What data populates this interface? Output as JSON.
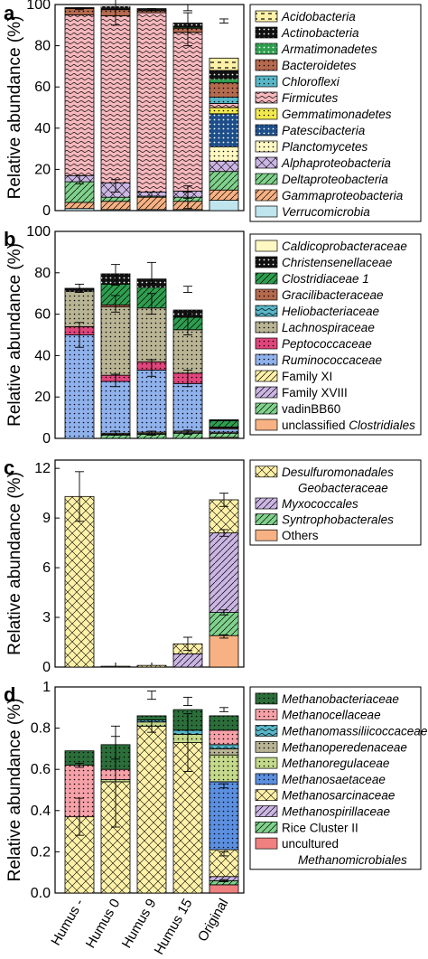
{
  "chart_data": [
    {
      "panel": "a",
      "type": "bar",
      "stacked": true,
      "ylabel": "Relative abundance (%)",
      "ylim": [
        0,
        100
      ],
      "yticks": [
        "0",
        "20",
        "40",
        "60",
        "80",
        "100"
      ],
      "categories": [
        "Humus -",
        "Humus 0",
        "Humus 9",
        "Humus 15",
        "Original"
      ],
      "series": [
        {
          "name": "Acidobacteria",
          "italic": true,
          "color": "#fff2a8",
          "pattern": "dash-black",
          "values": [
            0,
            0,
            0,
            0,
            6
          ]
        },
        {
          "name": "Actinobacteria",
          "italic": true,
          "color": "#111111",
          "pattern": "dots-white",
          "values": [
            0.5,
            1.5,
            1,
            2,
            4
          ]
        },
        {
          "name": "Armatimonadetes",
          "italic": true,
          "color": "#2e9e4f",
          "pattern": "dots-white",
          "values": [
            0,
            0,
            0,
            0.5,
            2
          ]
        },
        {
          "name": "Bacteroidetes",
          "italic": true,
          "color": "#b56a4e",
          "pattern": "dots-black",
          "values": [
            3,
            3,
            1,
            2,
            7
          ]
        },
        {
          "name": "Chloroflexi",
          "italic": true,
          "color": "#57b7c8",
          "pattern": "dots-black",
          "values": [
            0,
            0,
            0,
            0,
            3
          ]
        },
        {
          "name": "Firmicutes",
          "italic": true,
          "color": "#f6b8bd",
          "pattern": "wave-black",
          "values": [
            78,
            81,
            87,
            77,
            2
          ]
        },
        {
          "name": "Gemmatimonadetes",
          "italic": true,
          "color": "#f2e94e",
          "pattern": "dots-black",
          "values": [
            0,
            0,
            0,
            0,
            3
          ]
        },
        {
          "name": "Patescibacteria",
          "italic": true,
          "color": "#1d4e89",
          "pattern": "dots-white",
          "values": [
            0,
            0,
            0,
            0,
            16
          ]
        },
        {
          "name": "Planctomycetes",
          "italic": true,
          "color": "#fff8c2",
          "pattern": "dots-black",
          "values": [
            0,
            0,
            0,
            0,
            7
          ]
        },
        {
          "name": "Alphaproteobacteria",
          "italic": true,
          "color": "#cbb5e3",
          "pattern": "cross-black",
          "values": [
            3,
            7,
            2,
            3,
            5
          ]
        },
        {
          "name": "Deltaproteobacteria",
          "italic": true,
          "color": "#7fd18b",
          "pattern": "diag-black",
          "values": [
            10,
            2,
            0.5,
            2,
            9
          ]
        },
        {
          "name": "Gammaproteobacteria",
          "italic": true,
          "color": "#f7b183",
          "pattern": "diag-black",
          "values": [
            3,
            4,
            6,
            4,
            5
          ]
        },
        {
          "name": "Verrucomicrobia",
          "italic": true,
          "color": "#bfe5ee",
          "pattern": "none",
          "values": [
            1,
            0.5,
            0.5,
            0.5,
            5
          ]
        }
      ],
      "error_bars": [
        {
          "category": "Humus -",
          "series": "Firmicutes",
          "y": 98,
          "err": 0.5
        },
        {
          "category": "Humus 0",
          "series": "Firmicutes",
          "y": 98,
          "err": 8
        },
        {
          "category": "Humus 9",
          "series": "Firmicutes",
          "y": 97.5,
          "err": 0.5
        },
        {
          "category": "Humus 15",
          "series": "Firmicutes",
          "y": 88,
          "err": 8
        },
        {
          "category": "Humus 15",
          "series": "Firmicutes",
          "y": 98.5,
          "err": 1.5
        },
        {
          "category": "Humus -",
          "series": "Deltaproteobacteria",
          "y": 15,
          "err": 2
        },
        {
          "category": "Humus 0",
          "series": "Alphaproteobacteria",
          "y": 12,
          "err": 3
        },
        {
          "category": "Humus 9",
          "series": "Alphaproteobacteria",
          "y": 8,
          "err": 1
        },
        {
          "category": "Humus 15",
          "series": "Alphaproteobacteria",
          "y": 9,
          "err": 3
        },
        {
          "category": "Humus 15",
          "series": "Gammaproteobacteria",
          "y": 5,
          "err": 4
        },
        {
          "category": "Original",
          "series": "Acidobacteria",
          "y": 92,
          "err": 1
        }
      ]
    },
    {
      "panel": "b",
      "type": "bar",
      "stacked": true,
      "ylabel": "Relative abundance (%)",
      "ylim": [
        0,
        100
      ],
      "yticks": [
        "0",
        "20",
        "40",
        "60",
        "80",
        "100"
      ],
      "categories": [
        "Humus -",
        "Humus 0",
        "Humus 9",
        "Humus 15",
        "Original"
      ],
      "series": [
        {
          "name": "Caldicoprobacteraceae",
          "italic": true,
          "color": "#fff8c2",
          "pattern": "none",
          "values": [
            0,
            0,
            0,
            0,
            0
          ]
        },
        {
          "name": "Christensenellaceae",
          "italic": true,
          "color": "#111111",
          "pattern": "dots-white",
          "values": [
            1.5,
            5,
            4,
            3.5,
            0.5
          ]
        },
        {
          "name": "Clostridiaceae 1",
          "italic": true,
          "color": "#2e9e4f",
          "pattern": "diag-black",
          "values": [
            0,
            10,
            10,
            6,
            3
          ]
        },
        {
          "name": "Gracilibacteraceae",
          "italic": true,
          "color": "#b56a4e",
          "pattern": "dots-black",
          "values": [
            0,
            1,
            0,
            0,
            0.5
          ]
        },
        {
          "name": "Heliobacteriaceae",
          "italic": true,
          "color": "#57b7c8",
          "pattern": "wave-black",
          "values": [
            0,
            0,
            0,
            0,
            0
          ]
        },
        {
          "name": "Lachnospiraceae",
          "italic": true,
          "color": "#b8b494",
          "pattern": "dots-black",
          "values": [
            17,
            33,
            26,
            21,
            0.5
          ]
        },
        {
          "name": "Peptococcaceae",
          "italic": true,
          "color": "#e0457b",
          "pattern": "dots-black",
          "values": [
            4,
            3,
            4,
            5,
            0
          ]
        },
        {
          "name": "Ruminococcaceae",
          "italic": true,
          "color": "#8fb1ec",
          "pattern": "dots-black",
          "values": [
            50,
            25,
            30,
            23,
            1.5
          ]
        },
        {
          "name": "Family XI",
          "italic": false,
          "color": "#fff2a8",
          "pattern": "diag-black",
          "values": [
            0,
            0.5,
            0.5,
            0.5,
            0
          ]
        },
        {
          "name": "Family XVIII",
          "italic": false,
          "color": "#cbb5e3",
          "pattern": "diag-black",
          "values": [
            0,
            0.5,
            0.5,
            0.5,
            0.5
          ]
        },
        {
          "name": "vadinBB60",
          "italic": false,
          "color": "#7fd18b",
          "pattern": "diag-black",
          "values": [
            0,
            1.5,
            2,
            2.5,
            2
          ]
        },
        {
          "name": "unclassified Clostridiales",
          "italic_word": "Clostridiales",
          "prefix": "unclassified ",
          "color": "#f7b183",
          "pattern": "none",
          "values": [
            0,
            0,
            0,
            0,
            0.5
          ]
        }
      ],
      "error_bars": [
        {
          "category": "Humus -",
          "series": "Christensenellaceae",
          "y": 72.5,
          "err": 2
        },
        {
          "category": "Humus 0",
          "series": "Christensenellaceae",
          "y": 79,
          "err": 5
        },
        {
          "category": "Humus 9",
          "series": "Christensenellaceae",
          "y": 80,
          "err": 5
        },
        {
          "category": "Humus 15",
          "series": "Christensenellaceae",
          "y": 72,
          "err": 1.5
        },
        {
          "category": "Humus -",
          "series": "Ruminococcaceae",
          "y": 50,
          "err": 6
        },
        {
          "category": "Humus 0",
          "series": "Lachnospiraceae",
          "y": 65,
          "err": 4
        },
        {
          "category": "Humus 0",
          "series": "Ruminococcaceae",
          "y": 28,
          "err": 3
        },
        {
          "category": "Humus 9",
          "series": "Lachnospiraceae",
          "y": 65,
          "err": 5
        },
        {
          "category": "Humus 9",
          "series": "Ruminococcaceae",
          "y": 34,
          "err": 4
        },
        {
          "category": "Humus 15",
          "series": "Lachnospiraceae",
          "y": 55,
          "err": 5
        },
        {
          "category": "Humus 15",
          "series": "Ruminococcaceae",
          "y": 29,
          "err": 4
        },
        {
          "category": "Humus 0",
          "series": "vadinBB60",
          "y": 2.5,
          "err": 1
        },
        {
          "category": "Humus 9",
          "series": "vadinBB60",
          "y": 2.5,
          "err": 1
        },
        {
          "category": "Humus 15",
          "series": "vadinBB60",
          "y": 3,
          "err": 1
        }
      ]
    },
    {
      "panel": "c",
      "type": "bar",
      "stacked": true,
      "ylabel": "Relative abundance (%)",
      "ylim": [
        0,
        12.5
      ],
      "yticks": [
        "0",
        "3",
        "6",
        "9",
        "12"
      ],
      "categories": [
        "Humus -",
        "Humus 0",
        "Humus 9",
        "Humus 15",
        "Original"
      ],
      "series": [
        {
          "name": "Desulfuromonadales",
          "subname": "Geobacteraceae",
          "italic": true,
          "color": "#fff2a8",
          "pattern": "cross-black",
          "values": [
            10.3,
            0.05,
            0.1,
            0.6,
            2
          ]
        },
        {
          "name": "Myxococcales",
          "italic": true,
          "color": "#cbb5e3",
          "pattern": "diag-black",
          "values": [
            0,
            0,
            0,
            0.8,
            4.8
          ]
        },
        {
          "name": "Syntrophobacterales",
          "italic": true,
          "color": "#7fd18b",
          "pattern": "diag-black",
          "values": [
            0,
            0,
            0,
            0,
            1.4
          ]
        },
        {
          "name": "Others",
          "italic": false,
          "color": "#f7b183",
          "pattern": "none",
          "values": [
            0,
            0,
            0,
            0,
            1.9
          ]
        }
      ],
      "stack_order_bottom_to_top": [
        "Others",
        "Syntrophobacterales",
        "Myxococcales",
        "Desulfuromonadales"
      ],
      "error_bars": [
        {
          "category": "Humus -",
          "series": "Desulfuromonadales",
          "y": 10.3,
          "err": 1.5
        },
        {
          "category": "Humus 15",
          "series": "Desulfuromonadales",
          "y": 1.4,
          "err": 0.4
        },
        {
          "category": "Original",
          "series": "Desulfuromonadales",
          "y": 10.1,
          "err": 0.4
        },
        {
          "category": "Original",
          "series": "Myxococcales",
          "y": 8.1,
          "err": 0.2
        },
        {
          "category": "Original",
          "series": "Syntrophobacterales",
          "y": 3.3,
          "err": 0.15
        },
        {
          "category": "Original",
          "series": "Others",
          "y": 1.85,
          "err": 0.1
        }
      ]
    },
    {
      "panel": "d",
      "type": "bar",
      "stacked": true,
      "ylabel": "Relative abundance (%)",
      "ylim": [
        0,
        1
      ],
      "yticks": [
        "0.0",
        "0.2",
        "0.4",
        "0.6",
        "0.8",
        "1"
      ],
      "categories": [
        "Humus -",
        "Humus 0",
        "Humus 9",
        "Humus 15",
        "Original"
      ],
      "series": [
        {
          "name": "Methanobacteriaceae",
          "italic": true,
          "color": "#2b6e3a",
          "pattern": "dots-black",
          "values": [
            0.07,
            0.12,
            0.02,
            0.1,
            0.07
          ]
        },
        {
          "name": "Methanocellaceae",
          "italic": true,
          "color": "#f6a1a8",
          "pattern": "dots-black",
          "values": [
            0.25,
            0.05,
            0,
            0,
            0.07
          ]
        },
        {
          "name": "Methanomassiliicoccaceae",
          "italic": true,
          "color": "#57b7c8",
          "pattern": "wave-black",
          "values": [
            0,
            0,
            0.01,
            0.02,
            0.02
          ]
        },
        {
          "name": "Methanoperedenaceae",
          "italic": true,
          "color": "#b8b494",
          "pattern": "dots-black",
          "values": [
            0,
            0,
            0,
            0,
            0.03
          ]
        },
        {
          "name": "Methanoregulaceae",
          "italic": true,
          "color": "#c4d98a",
          "pattern": "dots-black",
          "values": [
            0,
            0.01,
            0.02,
            0.04,
            0.13
          ]
        },
        {
          "name": "Methanosaetaceae",
          "italic": true,
          "color": "#5b8fe0",
          "pattern": "dots-black",
          "values": [
            0,
            0,
            0,
            0,
            0.33
          ]
        },
        {
          "name": "Methanosarcinaceae",
          "italic": true,
          "color": "#fff2a8",
          "pattern": "cross-black",
          "values": [
            0.37,
            0.54,
            0.81,
            0.73,
            0.13
          ]
        },
        {
          "name": "Methanospirillaceae",
          "italic": true,
          "color": "#cbb5e3",
          "pattern": "diag-black",
          "values": [
            0,
            0,
            0,
            0,
            0.02
          ]
        },
        {
          "name": "Rice Cluster II",
          "italic": false,
          "color": "#7fd18b",
          "pattern": "diag-black",
          "values": [
            0,
            0,
            0,
            0,
            0.02
          ]
        },
        {
          "name": "uncultured",
          "subname": "Methanomicrobiales",
          "italic": false,
          "color": "#f08080",
          "pattern": "none",
          "values": [
            0,
            0,
            0,
            0,
            0.04
          ]
        }
      ],
      "error_bars": [
        {
          "category": "Humus 0",
          "series": "Methanobacteriaceae",
          "y": 0.73,
          "err": 0.08
        },
        {
          "category": "Humus 0",
          "series": "Methanosarcinaceae",
          "y": 0.54,
          "err": 0.22
        },
        {
          "category": "Humus -",
          "series": "Methanosarcinaceae",
          "y": 0.37,
          "err": 0.09
        },
        {
          "category": "Humus -",
          "series": "Methanocellaceae",
          "y": 0.62,
          "err": 0.01
        },
        {
          "category": "Humus 9",
          "series": "Methanobacteriaceae",
          "y": 0.96,
          "err": 0.02
        },
        {
          "category": "Humus 9",
          "series": "Methanosarcinaceae",
          "y": 0.81,
          "err": 0.03
        },
        {
          "category": "Humus 15",
          "series": "Methanobacteriaceae",
          "y": 0.93,
          "err": 0.02
        },
        {
          "category": "Humus 15",
          "series": "Methanosarcinaceae",
          "y": 0.73,
          "err": 0.14
        },
        {
          "category": "Original",
          "series": "Methanobacteriaceae",
          "y": 0.89,
          "err": 0.01
        },
        {
          "category": "Original",
          "series": "Methanosaetaceae",
          "y": 0.52,
          "err": 0.01
        },
        {
          "category": "Original",
          "series": "Methanosarcinaceae",
          "y": 0.19,
          "err": 0.01
        },
        {
          "category": "Original",
          "series": "Rice Cluster II",
          "y": 0.06,
          "err": 0.005
        }
      ]
    }
  ]
}
